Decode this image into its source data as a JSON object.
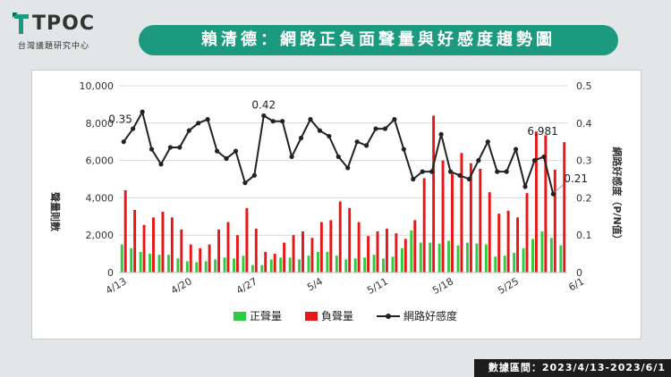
{
  "logo": {
    "text": "TPOC",
    "sub": "台灣議題研究中心"
  },
  "title": "賴清德：網路正負面聲量與好感度趨勢圖",
  "footer": "數據區間：2023/4/13-2023/6/1",
  "colors": {
    "positive": "#2ecc40",
    "negative": "#e81717",
    "favor": "#222222",
    "accent": "#1b9a7f"
  },
  "chart_data": {
    "type": "bar",
    "title": "",
    "ylabel": "聲量則數",
    "y2label": "網路好感度（P/N值）",
    "ylim": [
      0,
      10000
    ],
    "y2lim": [
      0,
      0.5
    ],
    "yticks": [
      "0",
      "2,000",
      "4,000",
      "6,000",
      "8,000",
      "10,000"
    ],
    "y2ticks": [
      "0",
      "0.1",
      "0.2",
      "0.3",
      "0.4",
      "0.5"
    ],
    "xticklabels": [
      {
        "index": 0,
        "label": "4/13"
      },
      {
        "index": 7,
        "label": "4/20"
      },
      {
        "index": 14,
        "label": "4/27"
      },
      {
        "index": 21,
        "label": "5/4"
      },
      {
        "index": 28,
        "label": "5/11"
      },
      {
        "index": 35,
        "label": "5/18"
      },
      {
        "index": 42,
        "label": "5/25"
      },
      {
        "index": 49,
        "label": "6/1"
      }
    ],
    "legend_position": "bottom",
    "series": [
      {
        "name": "正聲量",
        "kind": "bar",
        "axis": "left",
        "values": [
          1500,
          1300,
          1100,
          1000,
          950,
          950,
          750,
          600,
          550,
          600,
          700,
          800,
          750,
          900,
          400,
          400,
          700,
          800,
          800,
          700,
          900,
          1100,
          1100,
          900,
          700,
          750,
          800,
          950,
          750,
          850,
          1300,
          2250,
          1600,
          1600,
          1550,
          1700,
          1450,
          1600,
          1550,
          1500,
          850,
          900,
          1050,
          1300,
          1800,
          2200,
          1850,
          1450
        ]
      },
      {
        "name": "負聲量",
        "kind": "bar",
        "axis": "left",
        "values": [
          4400,
          3350,
          2550,
          2950,
          3250,
          2950,
          2300,
          1500,
          1300,
          1500,
          2300,
          2700,
          2000,
          3450,
          2350,
          1100,
          1000,
          1600,
          2000,
          2200,
          1850,
          2700,
          2800,
          3800,
          3450,
          2700,
          1950,
          2200,
          2350,
          2100,
          1800,
          2800,
          5050,
          8400,
          6000,
          5300,
          6400,
          5850,
          5550,
          4300,
          3150,
          3300,
          2950,
          4250,
          7550,
          7350,
          5500,
          6981
        ]
      },
      {
        "name": "網路好感度",
        "kind": "line",
        "axis": "right",
        "values": [
          0.35,
          0.385,
          0.43,
          0.33,
          0.29,
          0.335,
          0.335,
          0.38,
          0.4,
          0.41,
          0.325,
          0.305,
          0.325,
          0.24,
          0.26,
          0.42,
          0.405,
          0.405,
          0.31,
          0.36,
          0.41,
          0.38,
          0.365,
          0.31,
          0.28,
          0.35,
          0.34,
          0.385,
          0.385,
          0.41,
          0.33,
          0.25,
          0.27,
          0.27,
          0.37,
          0.27,
          0.26,
          0.25,
          0.3,
          0.35,
          0.27,
          0.27,
          0.33,
          0.23,
          0.3,
          0.31,
          0.21,
          null
        ]
      }
    ],
    "annotations": [
      {
        "index": 0,
        "series": "網路好感度",
        "text": "0.35"
      },
      {
        "index": 15,
        "series": "網路好感度",
        "text": "0.42"
      },
      {
        "index": 46,
        "series": "網路好感度",
        "text": "0.21"
      },
      {
        "index": 47,
        "series": "負聲量",
        "text": "6,981"
      }
    ]
  }
}
